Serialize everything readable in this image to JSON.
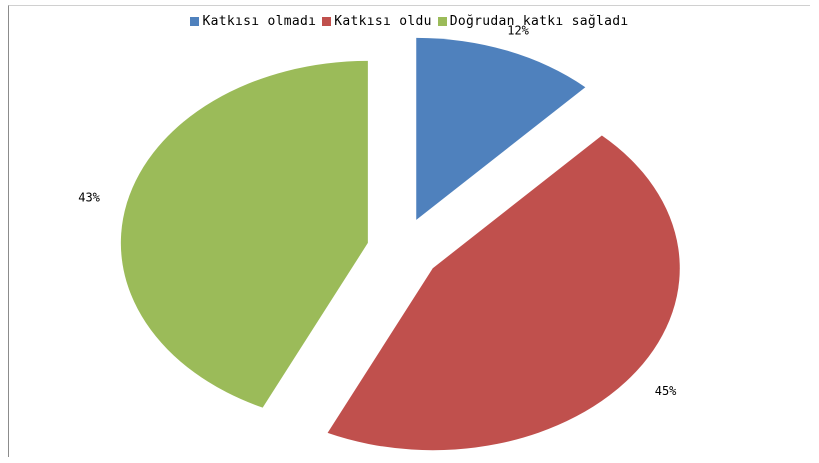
{
  "chart_data": {
    "type": "pie",
    "exploded": true,
    "legend_position": "top",
    "categories": [
      "Katkısı olmadı",
      "Katkısı oldu",
      "Doğrudan katkı sağladı"
    ],
    "values": [
      12,
      45,
      43
    ],
    "labels": [
      "12%",
      "45%",
      "43%"
    ],
    "colors": [
      "#4f81bd",
      "#c0504d",
      "#9bbb59"
    ]
  }
}
